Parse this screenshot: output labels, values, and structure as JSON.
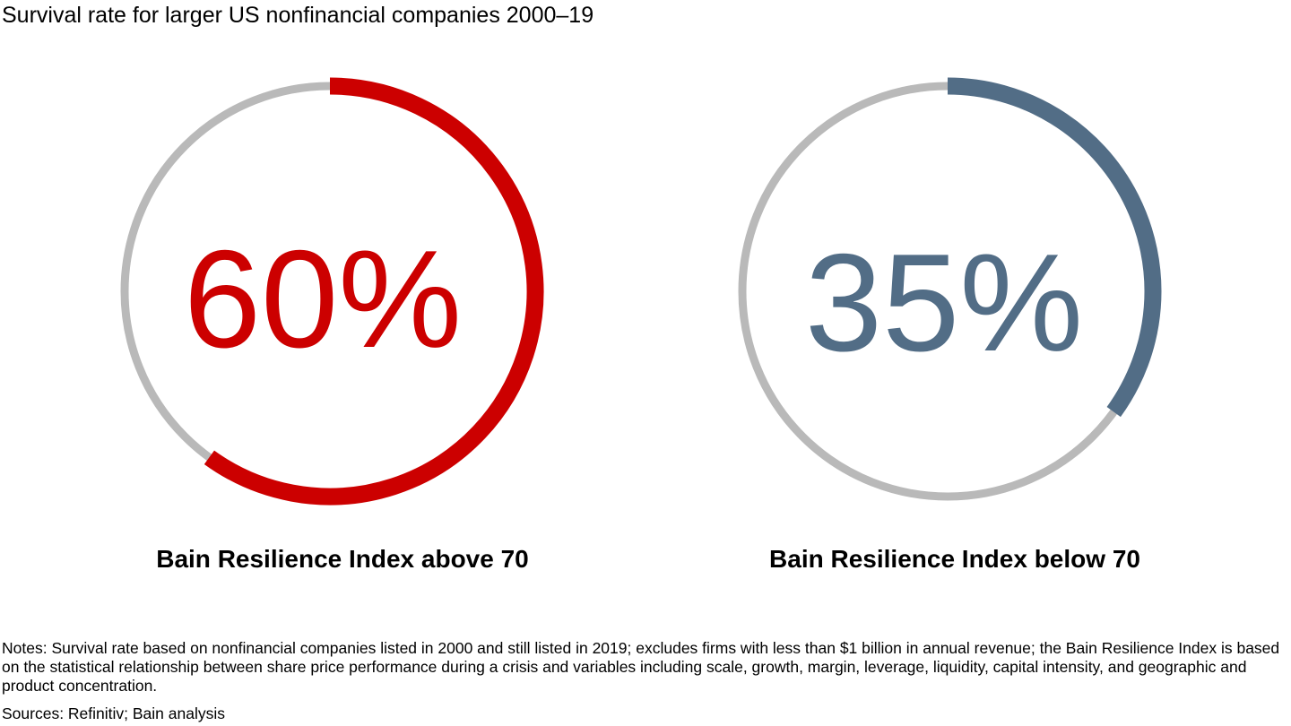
{
  "chart_data": {
    "type": "pie",
    "title": "Survival rate for larger US nonfinancial companies 2000–19",
    "charts": [
      {
        "label": "Bain Resilience Index above 70",
        "value": 60,
        "value_text": "60%",
        "color": "#cc0000",
        "track_color": "#b9b9b9"
      },
      {
        "label": "Bain Resilience Index below 70",
        "value": 35,
        "value_text": "35%",
        "color": "#526d86",
        "track_color": "#b9b9b9"
      }
    ]
  },
  "notes": "Notes: Survival rate based on nonfinancial companies listed in 2000 and still listed in 2019; excludes firms with less than $1 billion in annual revenue; the Bain Resilience Index is based on the statistical relationship between share price performance during a crisis and variables including scale, growth, margin, leverage, liquidity, capital intensity, and geographic and product concentration.",
  "sources": "Sources: Refinitiv; Bain analysis"
}
